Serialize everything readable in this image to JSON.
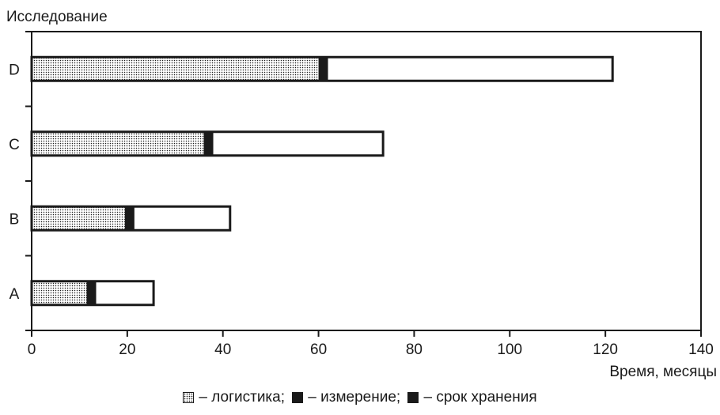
{
  "chart_data": {
    "type": "bar",
    "orientation": "horizontal",
    "stacked": true,
    "title": "",
    "ylabel": "Исследование",
    "xlabel": "Время, месяцы",
    "categories": [
      "D",
      "C",
      "B",
      "A"
    ],
    "series": [
      {
        "name": "логистика",
        "values": [
          60,
          36,
          19.5,
          11.5
        ],
        "pattern": "dotted"
      },
      {
        "name": "измерение",
        "values": [
          2,
          2,
          2,
          2
        ],
        "color": "#1a1a1a"
      },
      {
        "name": "срок хранения",
        "values": [
          59.5,
          35.5,
          20,
          12
        ],
        "color": "#ffffff"
      }
    ],
    "xlim": [
      0,
      140
    ],
    "xticks": [
      0,
      20,
      40,
      60,
      80,
      100,
      120,
      140
    ],
    "grid": false
  },
  "legend": {
    "items": [
      {
        "label": "– логистика;",
        "swatch": "dotted"
      },
      {
        "label": "– измерение;",
        "swatch": "solid"
      },
      {
        "label": "– срок хранения",
        "swatch": "solid"
      }
    ]
  }
}
